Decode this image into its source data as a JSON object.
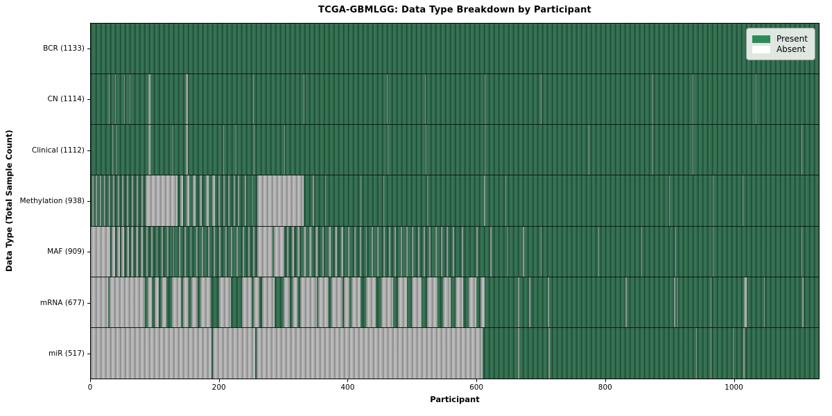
{
  "chart_data": {
    "type": "heatmap",
    "title": "TCGA-GBMLGG: Data Type Breakdown by Participant",
    "xlabel": "Participant",
    "ylabel": "Data Type (Total Sample Count)",
    "legend": {
      "present_label": "Present",
      "absent_label": "Absent",
      "position": "upper right"
    },
    "colors": {
      "present": "#2e8b57",
      "absent": "#ffffff",
      "absent_rendered_edge": "#a0a0a0"
    },
    "n_participants": 1133,
    "x_ticks": [
      0,
      200,
      400,
      600,
      800,
      1000
    ],
    "grid": false,
    "rows": [
      {
        "name": "BCR",
        "label": "BCR (1133)",
        "present_count": 1133,
        "absent_runs": []
      },
      {
        "name": "CN",
        "label": "CN (1114)",
        "present_count": 1114,
        "absent_runs": [
          [
            28,
            29
          ],
          [
            38,
            39
          ],
          [
            52,
            53
          ],
          [
            60,
            61
          ],
          [
            90,
            93
          ],
          [
            148,
            151
          ],
          [
            253,
            254
          ],
          [
            331,
            332
          ],
          [
            461,
            462
          ],
          [
            520,
            521
          ],
          [
            613,
            614
          ],
          [
            700,
            701
          ],
          [
            874,
            875
          ],
          [
            937,
            938
          ],
          [
            1035,
            1036
          ]
        ]
      },
      {
        "name": "Clinical",
        "label": "Clinical (1112)",
        "present_count": 1112,
        "absent_runs": [
          [
            33,
            34
          ],
          [
            39,
            40
          ],
          [
            90,
            93
          ],
          [
            127,
            128
          ],
          [
            148,
            151
          ],
          [
            206,
            207
          ],
          [
            226,
            227
          ],
          [
            254,
            255
          ],
          [
            301,
            302
          ],
          [
            462,
            463
          ],
          [
            521,
            522
          ],
          [
            613,
            614
          ],
          [
            775,
            776
          ],
          [
            874,
            875
          ],
          [
            937,
            938
          ],
          [
            1016,
            1017
          ],
          [
            1106,
            1107
          ]
        ]
      },
      {
        "name": "Methylation",
        "label": "Methylation (938)",
        "present_count": 938,
        "absent_runs": [
          [
            2,
            4
          ],
          [
            8,
            10
          ],
          [
            14,
            16
          ],
          [
            21,
            23
          ],
          [
            28,
            30
          ],
          [
            35,
            37
          ],
          [
            42,
            44
          ],
          [
            49,
            51
          ],
          [
            56,
            58
          ],
          [
            64,
            66
          ],
          [
            71,
            73
          ],
          [
            79,
            81
          ],
          [
            85,
            135
          ],
          [
            139,
            143
          ],
          [
            149,
            153
          ],
          [
            159,
            163
          ],
          [
            169,
            173
          ],
          [
            179,
            183
          ],
          [
            189,
            193
          ],
          [
            199,
            201
          ],
          [
            206,
            208
          ],
          [
            214,
            216
          ],
          [
            222,
            224
          ],
          [
            229,
            231
          ],
          [
            240,
            242
          ],
          [
            250,
            251
          ],
          [
            259,
            331
          ],
          [
            345,
            347
          ],
          [
            365,
            366
          ],
          [
            420,
            421
          ],
          [
            455,
            456
          ],
          [
            523,
            524
          ],
          [
            612,
            614
          ],
          [
            645,
            646
          ],
          [
            900,
            901
          ],
          [
            968,
            969
          ],
          [
            1014,
            1015
          ]
        ]
      },
      {
        "name": "MAF",
        "label": "MAF (909)",
        "present_count": 909,
        "absent_runs": [
          [
            0,
            30
          ],
          [
            32,
            38
          ],
          [
            41,
            45
          ],
          [
            48,
            52
          ],
          [
            56,
            59
          ],
          [
            63,
            66
          ],
          [
            70,
            73
          ],
          [
            78,
            81
          ],
          [
            86,
            89
          ],
          [
            94,
            96
          ],
          [
            102,
            104
          ],
          [
            110,
            112
          ],
          [
            119,
            121
          ],
          [
            128,
            130
          ],
          [
            137,
            139
          ],
          [
            146,
            148
          ],
          [
            155,
            157
          ],
          [
            164,
            166
          ],
          [
            173,
            175
          ],
          [
            182,
            184
          ],
          [
            191,
            193
          ],
          [
            200,
            202
          ],
          [
            209,
            211
          ],
          [
            218,
            220
          ],
          [
            227,
            229
          ],
          [
            236,
            238
          ],
          [
            245,
            247
          ],
          [
            253,
            255
          ],
          [
            259,
            283
          ],
          [
            285,
            301
          ],
          [
            305,
            308
          ],
          [
            313,
            316
          ],
          [
            322,
            325
          ],
          [
            331,
            334
          ],
          [
            340,
            343
          ],
          [
            350,
            353
          ],
          [
            360,
            363
          ],
          [
            370,
            373
          ],
          [
            380,
            383
          ],
          [
            390,
            393
          ],
          [
            400,
            403
          ],
          [
            410,
            412
          ],
          [
            419,
            421
          ],
          [
            428,
            430
          ],
          [
            437,
            439
          ],
          [
            446,
            448
          ],
          [
            455,
            457
          ],
          [
            464,
            466
          ],
          [
            473,
            475
          ],
          [
            482,
            484
          ],
          [
            491,
            493
          ],
          [
            500,
            502
          ],
          [
            509,
            511
          ],
          [
            518,
            520
          ],
          [
            527,
            529
          ],
          [
            536,
            538
          ],
          [
            545,
            547
          ],
          [
            554,
            556
          ],
          [
            563,
            565
          ],
          [
            577,
            579
          ],
          [
            600,
            602
          ],
          [
            622,
            624
          ],
          [
            648,
            650
          ],
          [
            672,
            674
          ],
          [
            700,
            701
          ],
          [
            757,
            758
          ],
          [
            790,
            791
          ],
          [
            857,
            858
          ],
          [
            910,
            911
          ],
          [
            968,
            969
          ],
          [
            1044,
            1045
          ],
          [
            1106,
            1107
          ]
        ]
      },
      {
        "name": "mRNA",
        "label": "mRNA (677)",
        "present_count": 677,
        "absent_runs": [
          [
            0,
            27
          ],
          [
            29,
            84
          ],
          [
            88,
            95
          ],
          [
            99,
            106
          ],
          [
            110,
            118
          ],
          [
            126,
            140
          ],
          [
            144,
            152
          ],
          [
            156,
            166
          ],
          [
            170,
            187
          ],
          [
            200,
            218
          ],
          [
            235,
            250
          ],
          [
            254,
            262
          ],
          [
            266,
            286
          ],
          [
            300,
            310
          ],
          [
            314,
            322
          ],
          [
            326,
            352
          ],
          [
            354,
            370
          ],
          [
            374,
            392
          ],
          [
            394,
            402
          ],
          [
            406,
            420
          ],
          [
            428,
            444
          ],
          [
            452,
            470
          ],
          [
            478,
            492
          ],
          [
            500,
            515
          ],
          [
            523,
            540
          ],
          [
            548,
            560
          ],
          [
            568,
            580
          ],
          [
            588,
            600
          ],
          [
            606,
            613
          ],
          [
            665,
            667
          ],
          [
            682,
            684
          ],
          [
            711,
            713
          ],
          [
            832,
            834
          ],
          [
            908,
            910
          ],
          [
            913,
            914
          ],
          [
            965,
            966
          ],
          [
            1017,
            1021
          ],
          [
            1048,
            1049
          ],
          [
            1107,
            1109
          ]
        ]
      },
      {
        "name": "miR",
        "label": "miR (517)",
        "present_count": 517,
        "absent_runs": [
          [
            0,
            188
          ],
          [
            190,
            256
          ],
          [
            258,
            610
          ],
          [
            665,
            667
          ],
          [
            712,
            714
          ],
          [
            942,
            943
          ],
          [
            965,
            966
          ],
          [
            999,
            1000
          ],
          [
            1015,
            1018
          ]
        ]
      }
    ]
  }
}
